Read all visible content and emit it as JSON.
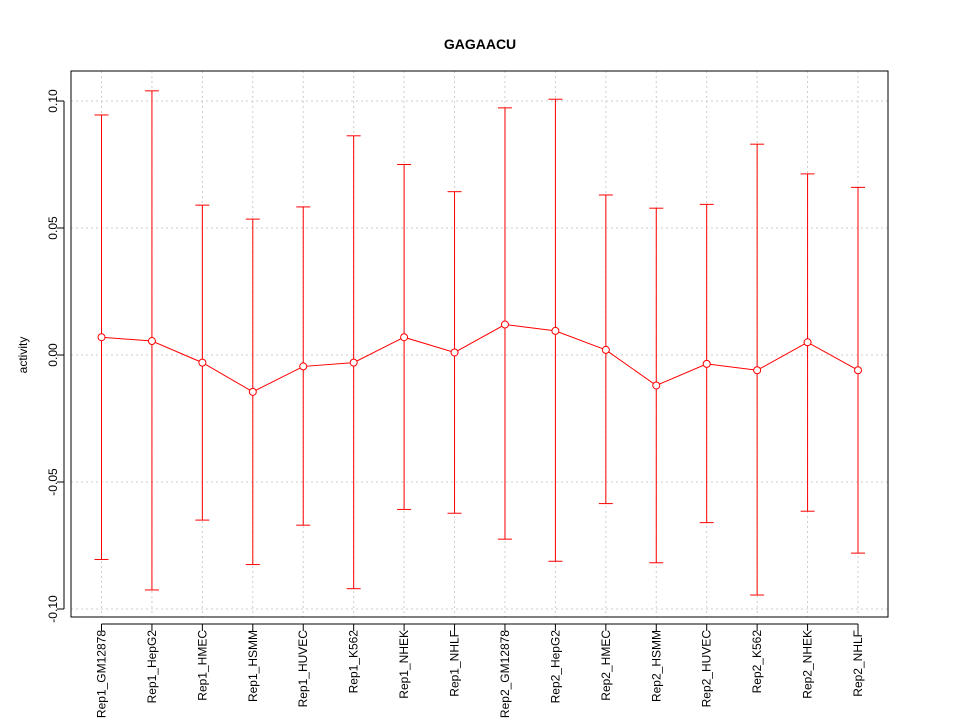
{
  "chart_data": {
    "type": "line",
    "title": "GAGAACU",
    "xlabel": "",
    "ylabel": "activity",
    "ylim": [
      -0.102,
      0.112
    ],
    "yticks": [
      -0.1,
      -0.05,
      0.0,
      0.05,
      0.1
    ],
    "ytick_labels": [
      "-0.10",
      "-0.05",
      "0.00",
      "0.05",
      "0.10"
    ],
    "grid": true,
    "legend": "none",
    "color": "#ff0000",
    "categories": [
      "Rep1_GM12878",
      "Rep1_HepG2",
      "Rep1_HMEC",
      "Rep1_HSMM",
      "Rep1_HUVEC",
      "Rep1_K562",
      "Rep1_NHEK",
      "Rep1_NHLF",
      "Rep2_GM12878",
      "Rep2_HepG2",
      "Rep2_HMEC",
      "Rep2_HSMM",
      "Rep2_HUVEC",
      "Rep2_K562",
      "Rep2_NHEK",
      "Rep2_NHLF"
    ],
    "values": [
      0.007,
      0.0055,
      -0.003,
      -0.0145,
      -0.0045,
      -0.003,
      0.007,
      0.001,
      0.012,
      0.0095,
      0.002,
      -0.012,
      -0.0035,
      -0.006,
      0.005,
      -0.006
    ],
    "upper": [
      0.0945,
      0.104,
      0.059,
      0.0535,
      0.0583,
      0.0863,
      0.075,
      0.0643,
      0.0973,
      0.1007,
      0.063,
      0.0578,
      0.0593,
      0.083,
      0.0713,
      0.066
    ],
    "lower": [
      -0.0805,
      -0.0925,
      -0.065,
      -0.0825,
      -0.067,
      -0.092,
      -0.0608,
      -0.0623,
      -0.0725,
      -0.0812,
      -0.0585,
      -0.0818,
      -0.066,
      -0.0945,
      -0.0615,
      -0.078
    ]
  }
}
